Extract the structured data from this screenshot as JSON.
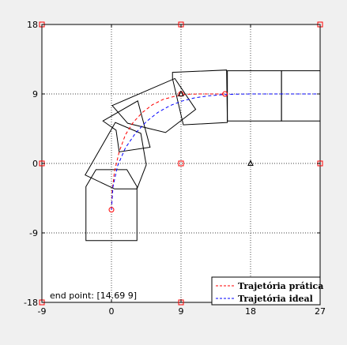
{
  "chart_data": {
    "type": "line",
    "title": "",
    "xlabel": "",
    "ylabel": "",
    "xlim": [
      -9,
      27
    ],
    "ylim": [
      -18,
      18
    ],
    "xticks": [
      -9,
      0,
      9,
      18,
      27
    ],
    "yticks": [
      -18,
      -9,
      0,
      9,
      18
    ],
    "xtick_labels": [
      "-9",
      "0",
      "9",
      "18",
      "27"
    ],
    "ytick_labels": [
      "-18",
      "-9",
      "0",
      "9",
      "18"
    ],
    "grid": true,
    "legend_position": "bottom-right",
    "series": [
      {
        "name": "Trajetória prática",
        "style": "dashed",
        "color": "#ff0000",
        "x": [
          0,
          0.1,
          0.4,
          1.0,
          1.8,
          2.8,
          4.0,
          5.3,
          6.7,
          8.2,
          9.7,
          11.3,
          13.0,
          14.69
        ],
        "y": [
          -6,
          -3.5,
          -1.0,
          1.5,
          3.7,
          5.3,
          6.6,
          7.6,
          8.3,
          8.7,
          8.95,
          9.0,
          9.0,
          9.0
        ]
      },
      {
        "name": "Trajetória ideal",
        "style": "dashed",
        "color": "#0000ff",
        "x": [
          0,
          0.2,
          0.8,
          1.8,
          3.1,
          4.5,
          6.0,
          7.6,
          9.2,
          10.8,
          12.5,
          14.2,
          16.0,
          18.0,
          21.0,
          24.0,
          27.0
        ],
        "y": [
          -6,
          -3.0,
          -0.3,
          2.0,
          3.9,
          5.4,
          6.6,
          7.5,
          8.1,
          8.5,
          8.75,
          8.9,
          8.97,
          9.0,
          9.0,
          9.0,
          9.0
        ]
      }
    ],
    "markers": [
      {
        "kind": "square",
        "color": "#ff0000",
        "points": [
          [
            -9,
            18
          ],
          [
            9,
            18
          ],
          [
            27,
            18
          ],
          [
            -9,
            0
          ],
          [
            9,
            0
          ],
          [
            27,
            0
          ],
          [
            -9,
            -18
          ],
          [
            9,
            -18
          ]
        ]
      },
      {
        "kind": "circle",
        "color": "#ff0000",
        "points": [
          [
            0,
            -6
          ],
          [
            9,
            9
          ],
          [
            14.69,
            9
          ]
        ]
      },
      {
        "kind": "triangle",
        "color": "#000000",
        "points": [
          [
            9,
            9
          ],
          [
            18,
            0
          ]
        ]
      }
    ],
    "vehicle_outlines": [
      [
        [
          -3.3,
          -10
        ],
        [
          3.3,
          -10
        ],
        [
          3.3,
          -3
        ],
        [
          2,
          -0.8
        ],
        [
          -2,
          -0.8
        ],
        [
          -3.3,
          -3
        ]
      ],
      [
        [
          -3.4,
          -1.5
        ],
        [
          0.5,
          5.3
        ],
        [
          3.8,
          3.9
        ],
        [
          4.5,
          -0.2
        ],
        [
          3.3,
          -3.3
        ],
        [
          0.4,
          -3.3
        ]
      ],
      [
        [
          -1.1,
          5.5
        ],
        [
          3.4,
          8.1
        ],
        [
          5.0,
          2.1
        ],
        [
          1.0,
          1.5
        ],
        [
          0.6,
          4.3
        ]
      ],
      [
        [
          0.1,
          7.5
        ],
        [
          8.2,
          11.0
        ],
        [
          10.9,
          7.0
        ],
        [
          7.0,
          4.0
        ],
        [
          2.1,
          5.2
        ]
      ],
      [
        [
          7.9,
          11.8
        ],
        [
          14.9,
          12.1
        ],
        [
          15.0,
          5.3
        ],
        [
          9.3,
          5.0
        ],
        [
          7.9,
          11.0
        ]
      ],
      [
        [
          15.0,
          12.0
        ],
        [
          22.0,
          12.0
        ],
        [
          22.0,
          5.5
        ],
        [
          15.0,
          5.5
        ],
        [
          15.0,
          12.0
        ]
      ],
      [
        [
          22.0,
          12.0
        ],
        [
          27.5,
          12.0
        ],
        [
          27.5,
          5.5
        ],
        [
          22.0,
          5.5
        ],
        [
          22.0,
          12.0
        ]
      ]
    ],
    "annotation": {
      "label": "end point: ",
      "value": "[14.69 9]"
    }
  }
}
